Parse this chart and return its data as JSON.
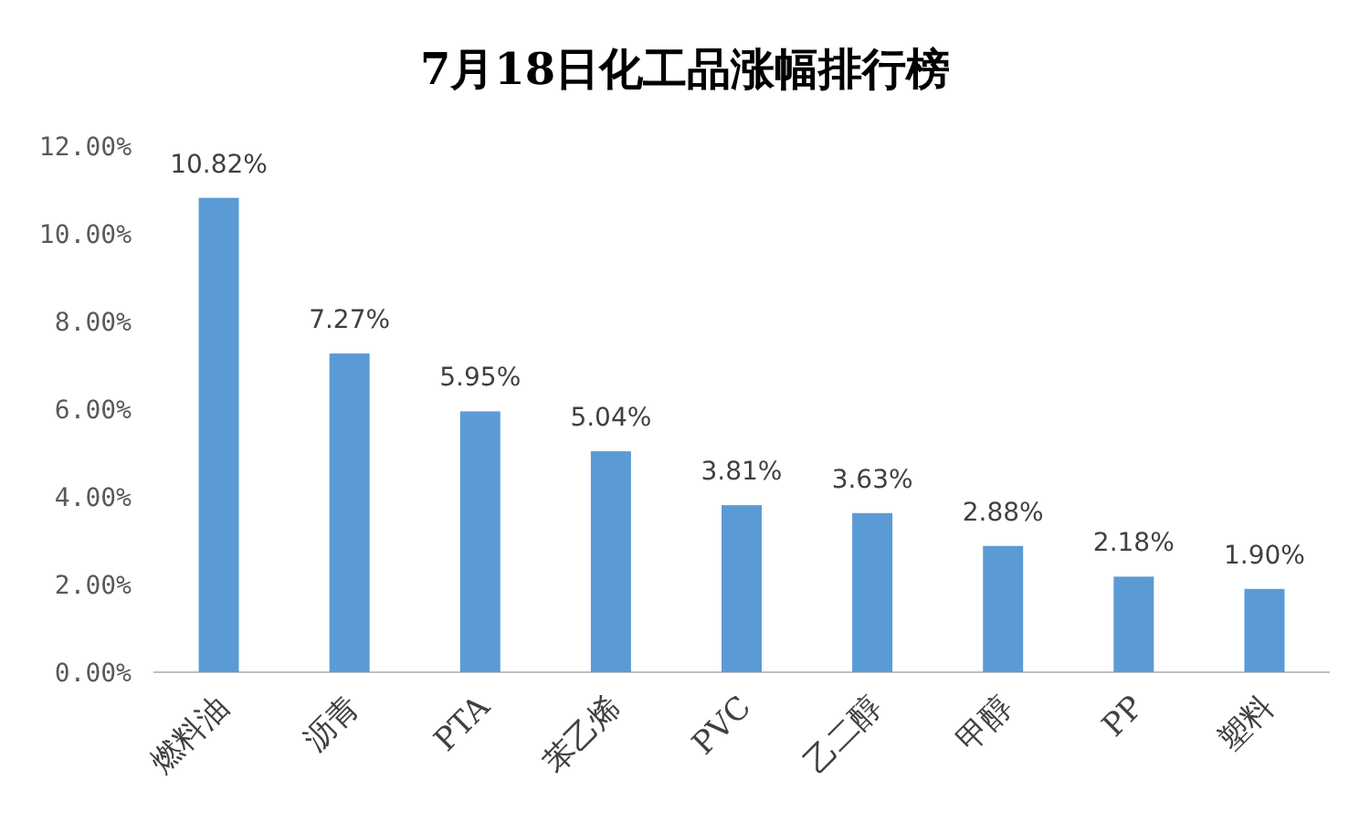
{
  "chart_data": {
    "type": "bar",
    "title": "7月18日化工品涨幅排行榜",
    "categories": [
      "燃料油",
      "沥青",
      "PTA",
      "苯乙烯",
      "PVC",
      "乙二醇",
      "甲醇",
      "PP",
      "塑料"
    ],
    "values": [
      10.82,
      7.27,
      5.95,
      5.04,
      3.81,
      3.63,
      2.88,
      2.18,
      1.9
    ],
    "value_labels": [
      "10.82%",
      "7.27%",
      "5.95%",
      "5.04%",
      "3.81%",
      "3.63%",
      "2.88%",
      "2.18%",
      "1.90%"
    ],
    "color": "#5b9bd5",
    "ylim": [
      0,
      12
    ],
    "yticks": [
      {
        "value": 0,
        "label": "0.00%"
      },
      {
        "value": 2,
        "label": "2.00%"
      },
      {
        "value": 4,
        "label": "4.00%"
      },
      {
        "value": 6,
        "label": "6.00%"
      },
      {
        "value": 8,
        "label": "8.00%"
      },
      {
        "value": 10,
        "label": "10.00%"
      },
      {
        "value": 12,
        "label": "12.00%"
      }
    ],
    "grid": false
  }
}
